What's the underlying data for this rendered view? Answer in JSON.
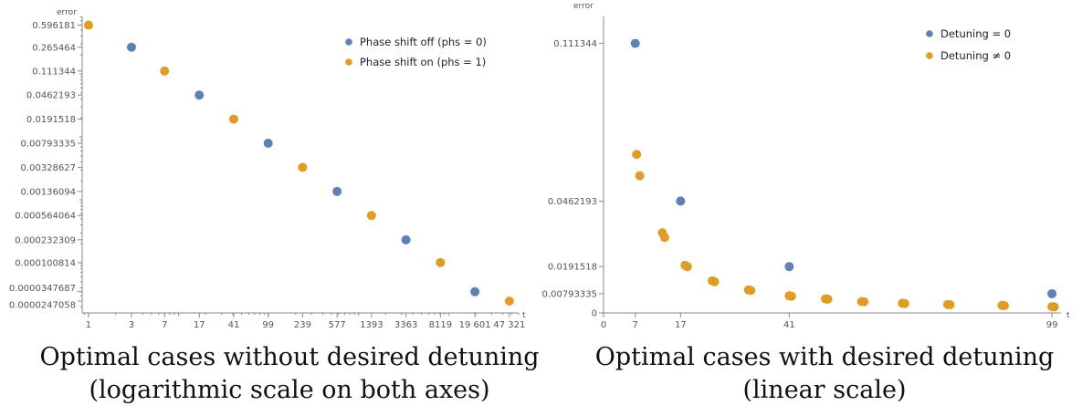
{
  "chart_data": [
    {
      "type": "scatter",
      "xlabel": "t",
      "ylabel": "error",
      "x_scale": "log",
      "y_scale": "log",
      "xlim": [
        0.85,
        60000
      ],
      "ylim": [
        1.6e-05,
        0.82
      ],
      "x_ticks": [
        1,
        3,
        7,
        17,
        41,
        99,
        239,
        577,
        1393,
        3363,
        8119,
        19601,
        47321
      ],
      "x_tick_labels": [
        "1",
        "3",
        "7",
        "17",
        "41",
        "99",
        "239",
        "577",
        "1393",
        "3363",
        "8119",
        "19 601",
        "47 321"
      ],
      "y_ticks": [
        0.596181,
        0.265464,
        0.111344,
        0.0462193,
        0.0191518,
        0.00793335,
        0.00328627,
        0.00136094,
        0.000564064,
        0.000232309,
        0.000100814,
        3.47687e-05,
        2.47058e-05
      ],
      "y_tick_labels": [
        "0.596181",
        "0.265464",
        "0.111344",
        "0.0462193",
        "0.0191518",
        "0.00793335",
        "0.00328627",
        "0.00136094",
        "0.000564064",
        "0.000232309",
        "0.000100814",
        "0.0000347687",
        "0.0000247058"
      ],
      "legend_position": "top-right",
      "series": [
        {
          "name": "Phase shift off (phs = 0)",
          "color": "#5e81b5",
          "points": [
            [
              3,
              0.265464
            ],
            [
              17,
              0.0462193
            ],
            [
              99,
              0.00793335
            ],
            [
              577,
              0.00136094
            ],
            [
              3363,
              0.000232309
            ],
            [
              19601,
              3.47687e-05
            ]
          ]
        },
        {
          "name": "Phase shift on (phs = 1)",
          "color": "#e19c24",
          "points": [
            [
              1,
              0.596181
            ],
            [
              7,
              0.111344
            ],
            [
              41,
              0.0191518
            ],
            [
              239,
              0.00328627
            ],
            [
              1393,
              0.000564064
            ],
            [
              8119,
              0.000100814
            ],
            [
              47321,
              2.47058e-05
            ]
          ]
        }
      ],
      "caption_lines": [
        "Optimal cases without desired detuning",
        "(logarithmic scale on both axes)"
      ]
    },
    {
      "type": "scatter",
      "xlabel": "t",
      "ylabel": "error",
      "x_scale": "linear",
      "y_scale": "linear",
      "xlim": [
        0,
        101
      ],
      "ylim": [
        0,
        0.1225
      ],
      "x_ticks": [
        0,
        7,
        17,
        41,
        99
      ],
      "x_tick_labels": [
        "0",
        "7",
        "17",
        "41",
        "99"
      ],
      "y_ticks": [
        0,
        0.00793335,
        0.0191518,
        0.0462193,
        0.111344
      ],
      "y_tick_labels": [
        "0",
        "0.00793335",
        "0.0191518",
        "0.0462193",
        "0.111344"
      ],
      "legend_position": "top-right",
      "series": [
        {
          "name": "Detuning = 0",
          "color": "#5e81b5",
          "points": [
            [
              7,
              0.111344
            ],
            [
              17,
              0.0462193
            ],
            [
              41,
              0.0191518
            ],
            [
              99,
              0.00793335
            ]
          ]
        },
        {
          "name": "Detuning ≠ 0",
          "color": "#e19c24",
          "points": [
            [
              7.3,
              0.0655
            ],
            [
              8,
              0.0567
            ],
            [
              13,
              0.0331
            ],
            [
              13.5,
              0.0312
            ],
            [
              18,
              0.0197
            ],
            [
              18.5,
              0.0191
            ],
            [
              24,
              0.0133
            ],
            [
              24.5,
              0.0129
            ],
            [
              32,
              0.0095
            ],
            [
              32.5,
              0.0093
            ],
            [
              41,
              0.0071
            ],
            [
              41.5,
              0.0069
            ],
            [
              49,
              0.0058
            ],
            [
              49.5,
              0.0057
            ],
            [
              57,
              0.0047
            ],
            [
              57.5,
              0.0046
            ],
            [
              66,
              0.004
            ],
            [
              66.5,
              0.0039
            ],
            [
              76,
              0.0035
            ],
            [
              76.5,
              0.0034
            ],
            [
              88,
              0.0031
            ],
            [
              88.5,
              0.003
            ],
            [
              99,
              0.0026
            ],
            [
              99.5,
              0.0025
            ]
          ]
        }
      ],
      "caption_lines": [
        "Optimal cases with desired detuning",
        "(linear scale)"
      ]
    }
  ]
}
